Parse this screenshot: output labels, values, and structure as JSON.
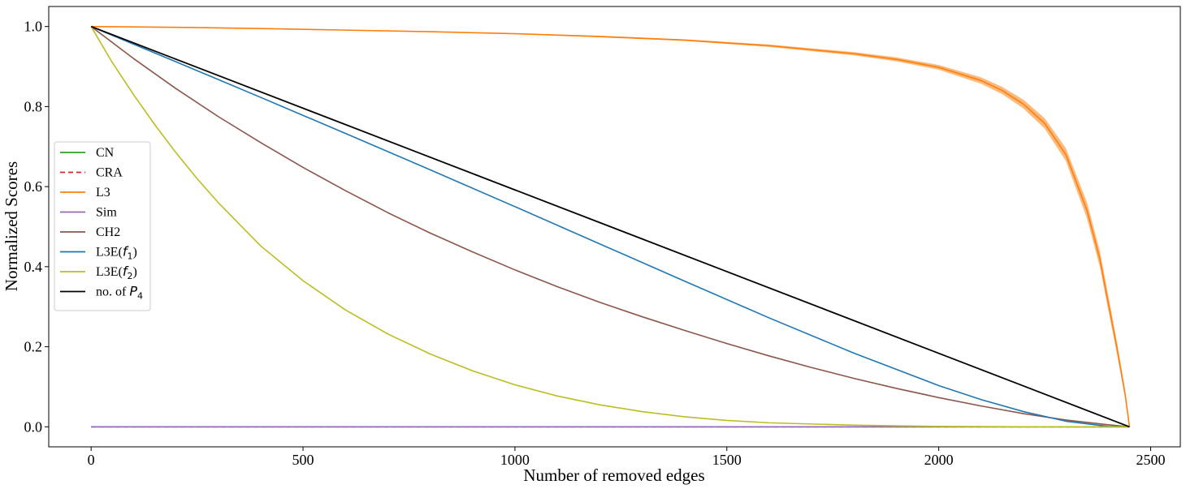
{
  "chart_data": {
    "type": "line",
    "title": "",
    "xlabel": "Number of removed edges",
    "ylabel": "Normalized Scores",
    "xlim": [
      -100,
      2570
    ],
    "ylim": [
      -0.05,
      1.05
    ],
    "xticks": [
      0,
      500,
      1000,
      1500,
      2000,
      2500
    ],
    "yticks": [
      0.0,
      0.2,
      0.4,
      0.6,
      0.8,
      1.0
    ],
    "xtick_labels": [
      "0",
      "500",
      "1000",
      "1500",
      "2000",
      "2500"
    ],
    "ytick_labels": [
      "0.0",
      "0.2",
      "0.4",
      "0.6",
      "0.8",
      "1.0"
    ],
    "grid": false,
    "legend_position": "center-left",
    "series": [
      {
        "name": "CN",
        "color": "#2ca02c",
        "style": "solid",
        "x": [
          0,
          500,
          1000,
          1500,
          2000,
          2450
        ],
        "y": [
          0,
          0,
          0,
          0,
          0,
          0
        ]
      },
      {
        "name": "CRA",
        "color": "#d62728",
        "style": "dashed",
        "x": [
          0,
          500,
          1000,
          1500,
          2000,
          2450
        ],
        "y": [
          0,
          0,
          0,
          0,
          0,
          0
        ]
      },
      {
        "name": "L3",
        "color": "#ff7f0e",
        "style": "solid",
        "x": [
          0,
          200,
          400,
          600,
          800,
          1000,
          1200,
          1400,
          1600,
          1800,
          1900,
          2000,
          2100,
          2150,
          2200,
          2250,
          2300,
          2350,
          2380,
          2400,
          2420,
          2440,
          2450
        ],
        "y": [
          1.0,
          0.998,
          0.995,
          0.991,
          0.987,
          0.982,
          0.975,
          0.966,
          0.952,
          0.932,
          0.918,
          0.898,
          0.865,
          0.84,
          0.806,
          0.758,
          0.68,
          0.54,
          0.42,
          0.31,
          0.2,
          0.08,
          0.0
        ],
        "band_halfwidth": [
          0,
          0.001,
          0.001,
          0.001,
          0.001,
          0.001,
          0.002,
          0.002,
          0.003,
          0.004,
          0.005,
          0.006,
          0.008,
          0.009,
          0.011,
          0.013,
          0.016,
          0.02,
          0.02,
          0.018,
          0.015,
          0.01,
          0.0
        ]
      },
      {
        "name": "Sim",
        "color": "#9467bd",
        "style": "solid",
        "x": [
          0,
          500,
          1000,
          1500,
          2000,
          2450
        ],
        "y": [
          0,
          0,
          0,
          0,
          0,
          0
        ]
      },
      {
        "name": "CH2",
        "color": "#8c564b",
        "style": "solid",
        "x": [
          0,
          100,
          200,
          300,
          400,
          500,
          600,
          700,
          800,
          900,
          1000,
          1100,
          1200,
          1300,
          1400,
          1500,
          1600,
          1700,
          1800,
          1900,
          2000,
          2100,
          2200,
          2300,
          2400,
          2450
        ],
        "y": [
          1.0,
          0.92,
          0.845,
          0.775,
          0.71,
          0.648,
          0.59,
          0.535,
          0.484,
          0.437,
          0.392,
          0.35,
          0.311,
          0.275,
          0.241,
          0.208,
          0.177,
          0.148,
          0.121,
          0.096,
          0.073,
          0.052,
          0.033,
          0.017,
          0.005,
          0.0
        ]
      },
      {
        "name": "L3E(f1)",
        "color": "#1f77b4",
        "style": "solid",
        "x": [
          0,
          200,
          400,
          600,
          800,
          1000,
          1200,
          1400,
          1600,
          1800,
          2000,
          2100,
          2200,
          2300,
          2400,
          2450
        ],
        "y": [
          1.0,
          0.912,
          0.823,
          0.733,
          0.642,
          0.55,
          0.457,
          0.364,
          0.272,
          0.184,
          0.103,
          0.068,
          0.038,
          0.014,
          0.001,
          0.0
        ]
      },
      {
        "name": "L3E(f2)",
        "color": "#bcbd22",
        "style": "solid",
        "x": [
          0,
          50,
          100,
          150,
          200,
          250,
          300,
          400,
          500,
          600,
          700,
          800,
          900,
          1000,
          1100,
          1200,
          1300,
          1400,
          1500,
          1600,
          1800,
          2000,
          2200,
          2450
        ],
        "y": [
          1.0,
          0.91,
          0.83,
          0.755,
          0.685,
          0.62,
          0.56,
          0.452,
          0.365,
          0.292,
          0.232,
          0.182,
          0.14,
          0.105,
          0.077,
          0.055,
          0.038,
          0.025,
          0.016,
          0.01,
          0.004,
          0.001,
          0.0,
          0.0
        ]
      },
      {
        "name": "no. of P4",
        "color": "#000000",
        "style": "solid",
        "x": [
          0,
          2450
        ],
        "y": [
          1.0,
          0.0
        ]
      }
    ],
    "legend": [
      {
        "text": "CN",
        "color": "#2ca02c",
        "style": "solid"
      },
      {
        "text": "CRA",
        "color": "#d62728",
        "style": "dashed"
      },
      {
        "text": "L3",
        "color": "#ff7f0e",
        "style": "solid"
      },
      {
        "text": "Sim",
        "color": "#9467bd",
        "style": "solid"
      },
      {
        "text": "CH2",
        "color": "#8c564b",
        "style": "solid"
      },
      {
        "text": "L3E(",
        "math": "f",
        "sub": "1",
        "suffix": ")",
        "color": "#1f77b4",
        "style": "solid"
      },
      {
        "text": "L3E(",
        "math": "f",
        "sub": "2",
        "suffix": ")",
        "color": "#bcbd22",
        "style": "solid"
      },
      {
        "text": "no. of ",
        "math": "P",
        "sub": "4",
        "suffix": "",
        "color": "#000000",
        "style": "solid"
      }
    ]
  }
}
